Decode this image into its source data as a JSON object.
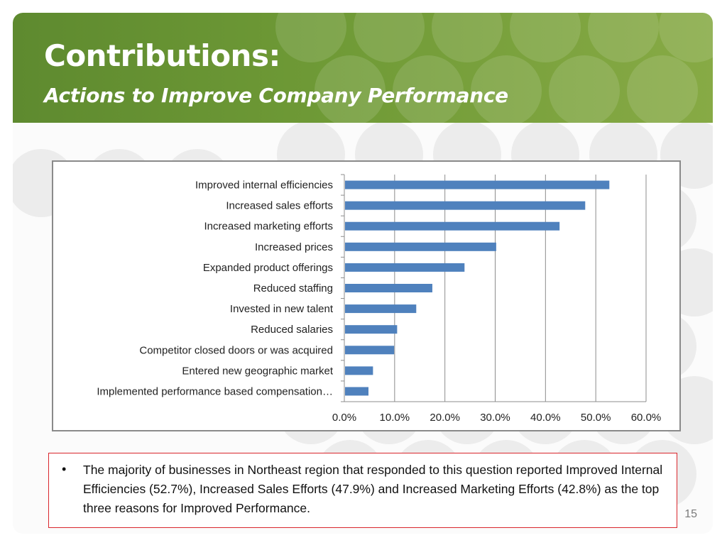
{
  "slide": {
    "title": "Contributions:",
    "subtitle": "Actions to Improve Company Performance",
    "page_number": "15",
    "accent_color": "#6f9a36"
  },
  "note": {
    "bullet": "•",
    "text": "The majority of businesses in Northeast region that responded to this question reported Improved Internal Efficiencies (52.7%), Increased Sales Efforts (47.9%) and Increased Marketing Efforts (42.8%) as the top three reasons for Improved Performance."
  },
  "chart_data": {
    "type": "bar",
    "orientation": "horizontal",
    "categories": [
      "Improved internal efficiencies",
      "Increased sales efforts",
      "Increased marketing efforts",
      "Increased prices",
      "Expanded product offerings",
      "Reduced staffing",
      "Invested in new talent",
      "Reduced salaries",
      "Competitor closed doors or was acquired",
      "Entered new geographic market",
      "Implemented performance based compensation…"
    ],
    "values": [
      52.7,
      47.9,
      42.8,
      30.2,
      23.9,
      17.5,
      14.3,
      10.5,
      9.9,
      5.7,
      4.8
    ],
    "xlim": [
      0,
      60
    ],
    "xticks": [
      "0.0%",
      "10.0%",
      "20.0%",
      "30.0%",
      "40.0%",
      "50.0%",
      "60.0%"
    ],
    "grid": true,
    "bar_color": "#4f81bd"
  }
}
